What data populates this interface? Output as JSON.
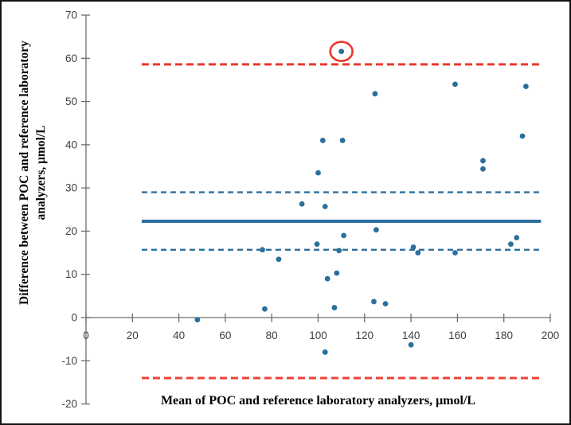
{
  "figure": {
    "background": "#ffffff",
    "border_color": "#141414"
  },
  "chart_data": {
    "type": "scatter",
    "title": "",
    "xlabel": "Mean of POC and reference laboratory analyzers, μmol/L",
    "ylabel": "Difference between POC and reference laboratory analyzers, μmol/L",
    "xlim": [
      0,
      200
    ],
    "ylim": [
      -20,
      70
    ],
    "x_ticks": [
      0,
      20,
      40,
      60,
      80,
      100,
      120,
      140,
      160,
      180,
      200
    ],
    "y_ticks": [
      -20,
      -10,
      0,
      10,
      20,
      30,
      40,
      50,
      60,
      70
    ],
    "grid": false,
    "legend": "none",
    "point_color": "#2b6f9d",
    "axis_color": "#6e6e6e",
    "tick_label_color": "#3f3f3f",
    "points": [
      [
        48,
        -0.5
      ],
      [
        76,
        15.7
      ],
      [
        77,
        2
      ],
      [
        83,
        13.5
      ],
      [
        93,
        26.3
      ],
      [
        99.5,
        17
      ],
      [
        100,
        33.5
      ],
      [
        102,
        41
      ],
      [
        103,
        25.7
      ],
      [
        103,
        -8
      ],
      [
        104,
        9
      ],
      [
        107,
        2.3
      ],
      [
        108,
        10.3
      ],
      [
        109,
        15.5
      ],
      [
        110,
        61.6
      ],
      [
        110.5,
        41
      ],
      [
        111,
        19
      ],
      [
        124.5,
        51.8
      ],
      [
        124,
        3.7
      ],
      [
        125,
        20.3
      ],
      [
        129,
        3.2
      ],
      [
        140,
        -6.3
      ],
      [
        141,
        16.3
      ],
      [
        143,
        15
      ],
      [
        159,
        54
      ],
      [
        159,
        15
      ],
      [
        171,
        36.3
      ],
      [
        171,
        34.4
      ],
      [
        183,
        17
      ],
      [
        185.5,
        18.5
      ],
      [
        188,
        42
      ],
      [
        189.5,
        53.5
      ]
    ],
    "line_span_x": [
      24,
      196
    ],
    "reference_lines": [
      {
        "name": "upper-limit-of-agreement-line",
        "value": 58.6,
        "style": "dashed",
        "color": "#e9392c",
        "width": 3,
        "dash": "9 5"
      },
      {
        "name": "ci-upper-line",
        "value": 29.0,
        "style": "dashed",
        "color": "#2b6f9d",
        "width": 2.4,
        "dash": "7 5"
      },
      {
        "name": "mean-bias-line",
        "value": 22.3,
        "style": "solid",
        "color": "#2b6f9d",
        "width": 4,
        "dash": ""
      },
      {
        "name": "ci-lower-line",
        "value": 15.7,
        "style": "dashed",
        "color": "#2b6f9d",
        "width": 2.4,
        "dash": "7 5"
      },
      {
        "name": "lower-limit-of-agreement-line",
        "value": -14.0,
        "style": "dashed",
        "color": "#ef4136",
        "width": 3,
        "dash": "9 5"
      }
    ],
    "annotations": [
      {
        "type": "circle",
        "name": "outlier-circle",
        "x": 110,
        "y": 61.6,
        "color": "#e9392c"
      }
    ]
  }
}
